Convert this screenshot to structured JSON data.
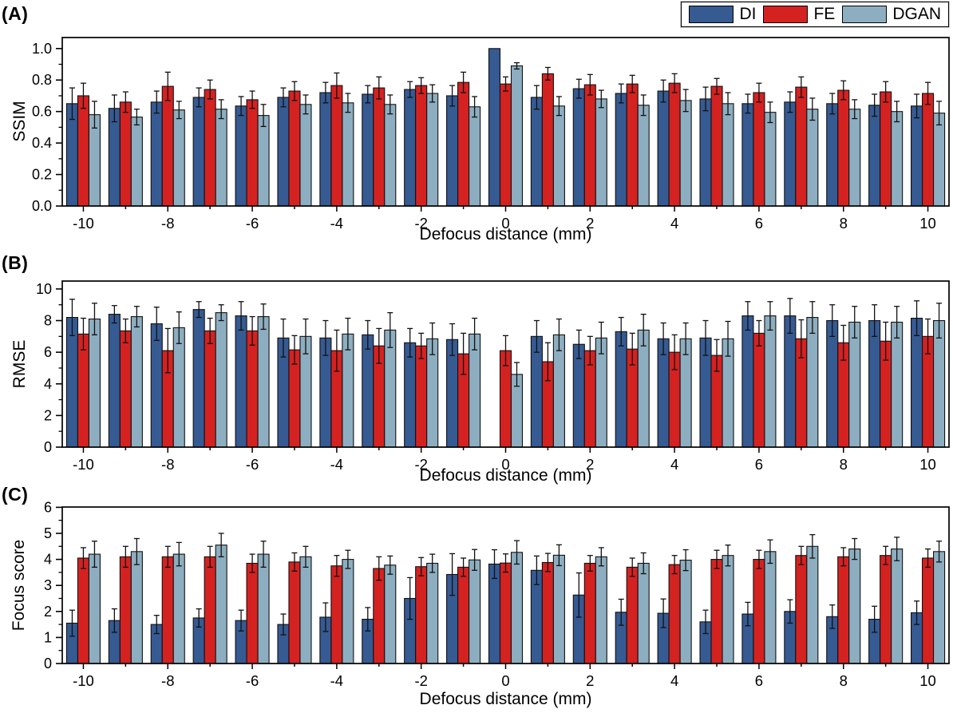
{
  "figure": {
    "panel_letters": [
      "(A)",
      "(B)",
      "(C)"
    ]
  },
  "legend": {
    "position": "top-right",
    "items": [
      {
        "label": "DI",
        "color": "#365A92"
      },
      {
        "label": "FE",
        "color": "#D42221"
      },
      {
        "label": "DGAN",
        "color": "#8DAEC0"
      }
    ]
  },
  "chart_data": [
    {
      "type": "bar",
      "panel_label": "(A)",
      "ylabel": "SSIM",
      "xlabel": "Defocus distance (mm)",
      "ylim": [
        0,
        1.0
      ],
      "ytick_step": 0.2,
      "ytick_decimals": 1,
      "grid": false,
      "legend_position": "top-right",
      "categories": [
        -10,
        -9,
        -8,
        -7,
        -6,
        -5,
        -4,
        -3,
        -2,
        -1,
        0,
        1,
        2,
        3,
        4,
        5,
        6,
        7,
        8,
        9,
        10
      ],
      "xtick_labels": [
        -10,
        -8,
        -6,
        -4,
        -2,
        0,
        2,
        4,
        6,
        8,
        10
      ],
      "series": [
        {
          "name": "DI",
          "color": "#365A92",
          "values": [
            0.65,
            0.62,
            0.66,
            0.69,
            0.635,
            0.69,
            0.72,
            0.71,
            0.74,
            0.7,
            1.0,
            0.69,
            0.745,
            0.715,
            0.73,
            0.68,
            0.65,
            0.66,
            0.65,
            0.64,
            0.635
          ],
          "errors": [
            0.1,
            0.085,
            0.07,
            0.06,
            0.06,
            0.06,
            0.065,
            0.055,
            0.05,
            0.065,
            0,
            0.075,
            0.06,
            0.06,
            0.07,
            0.075,
            0.06,
            0.065,
            0.065,
            0.07,
            0.075
          ]
        },
        {
          "name": "FE",
          "color": "#D42221",
          "values": [
            0.7,
            0.66,
            0.76,
            0.74,
            0.675,
            0.73,
            0.765,
            0.75,
            0.765,
            0.785,
            0.775,
            0.84,
            0.77,
            0.775,
            0.78,
            0.76,
            0.72,
            0.755,
            0.735,
            0.725,
            0.715
          ],
          "errors": [
            0.08,
            0.065,
            0.09,
            0.06,
            0.055,
            0.06,
            0.08,
            0.07,
            0.05,
            0.065,
            0.045,
            0.04,
            0.065,
            0.055,
            0.06,
            0.05,
            0.06,
            0.065,
            0.06,
            0.065,
            0.07
          ]
        },
        {
          "name": "DGAN",
          "color": "#8DAEC0",
          "values": [
            0.58,
            0.565,
            0.61,
            0.615,
            0.575,
            0.645,
            0.655,
            0.645,
            0.715,
            0.63,
            0.89,
            0.635,
            0.68,
            0.64,
            0.67,
            0.65,
            0.595,
            0.615,
            0.615,
            0.6,
            0.59
          ],
          "errors": [
            0.085,
            0.05,
            0.055,
            0.06,
            0.07,
            0.06,
            0.06,
            0.06,
            0.055,
            0.065,
            0.02,
            0.06,
            0.055,
            0.065,
            0.07,
            0.07,
            0.065,
            0.07,
            0.06,
            0.065,
            0.075
          ]
        }
      ]
    },
    {
      "type": "bar",
      "panel_label": "(B)",
      "ylabel": "RMSE",
      "xlabel": "Defocus distance (mm)",
      "ylim": [
        0,
        10
      ],
      "ytick_step": 2,
      "ytick_decimals": 0,
      "grid": false,
      "categories": [
        -10,
        -9,
        -8,
        -7,
        -6,
        -5,
        -4,
        -3,
        -2,
        -1,
        0,
        1,
        2,
        3,
        4,
        5,
        6,
        7,
        8,
        9,
        10
      ],
      "xtick_labels": [
        -10,
        -8,
        -6,
        -4,
        -2,
        0,
        2,
        4,
        6,
        8,
        10
      ],
      "series": [
        {
          "name": "DI",
          "color": "#365A92",
          "values": [
            8.2,
            8.4,
            7.8,
            8.7,
            8.3,
            6.9,
            6.9,
            7.1,
            6.6,
            6.8,
            0,
            7.0,
            6.5,
            7.3,
            6.85,
            6.9,
            8.3,
            8.3,
            8.0,
            8.0,
            8.15
          ],
          "errors": [
            1.15,
            0.55,
            1.05,
            0.5,
            0.9,
            1.2,
            1.1,
            0.9,
            0.9,
            1.0,
            0,
            1.0,
            0.9,
            0.9,
            1.0,
            1.1,
            0.9,
            1.1,
            1.0,
            1.0,
            1.1
          ]
        },
        {
          "name": "FE",
          "color": "#D42221",
          "values": [
            7.15,
            7.35,
            6.1,
            7.35,
            7.35,
            6.15,
            6.1,
            6.4,
            6.4,
            5.9,
            6.1,
            5.4,
            6.1,
            6.2,
            6.0,
            5.8,
            7.2,
            6.85,
            6.6,
            6.7,
            7.0
          ],
          "errors": [
            1.0,
            0.75,
            1.4,
            0.8,
            0.9,
            0.9,
            1.3,
            1.1,
            0.8,
            1.3,
            0.95,
            1.2,
            0.9,
            1.0,
            1.1,
            1.0,
            0.8,
            1.2,
            1.1,
            1.2,
            1.1
          ]
        },
        {
          "name": "DGAN",
          "color": "#8DAEC0",
          "values": [
            8.1,
            8.25,
            7.55,
            8.5,
            8.25,
            7.0,
            7.15,
            7.4,
            6.85,
            7.15,
            4.6,
            7.1,
            6.9,
            7.4,
            6.85,
            6.85,
            8.3,
            8.2,
            7.9,
            7.9,
            8.0
          ],
          "errors": [
            1.0,
            0.65,
            1.0,
            0.5,
            0.8,
            1.1,
            1.0,
            1.1,
            1.0,
            1.0,
            0.75,
            1.0,
            1.0,
            1.0,
            1.0,
            1.1,
            0.9,
            1.0,
            1.0,
            1.0,
            1.1
          ]
        }
      ]
    },
    {
      "type": "bar",
      "panel_label": "(C)",
      "ylabel": "Focus score",
      "xlabel": "Defocus distance (mm)",
      "ylim": [
        0,
        6
      ],
      "ytick_step": 1,
      "ytick_decimals": 0,
      "grid": false,
      "categories": [
        -10,
        -9,
        -8,
        -7,
        -6,
        -5,
        -4,
        -3,
        -2,
        -1,
        0,
        1,
        2,
        3,
        4,
        5,
        6,
        7,
        8,
        9,
        10
      ],
      "xtick_labels": [
        -10,
        -8,
        -6,
        -4,
        -2,
        0,
        2,
        4,
        6,
        8,
        10
      ],
      "series": [
        {
          "name": "DI",
          "color": "#365A92",
          "values": [
            1.55,
            1.65,
            1.5,
            1.75,
            1.65,
            1.5,
            1.78,
            1.7,
            2.5,
            3.42,
            3.82,
            3.58,
            2.63,
            1.97,
            1.93,
            1.6,
            1.9,
            2.0,
            1.8,
            1.7,
            1.95
          ],
          "errors": [
            0.5,
            0.45,
            0.35,
            0.35,
            0.4,
            0.4,
            0.55,
            0.45,
            0.8,
            0.8,
            0.55,
            0.55,
            0.85,
            0.5,
            0.55,
            0.45,
            0.45,
            0.45,
            0.45,
            0.5,
            0.45
          ]
        },
        {
          "name": "FE",
          "color": "#D42221",
          "values": [
            4.05,
            4.1,
            4.1,
            4.1,
            3.85,
            3.9,
            3.75,
            3.65,
            3.72,
            3.7,
            3.86,
            3.88,
            3.85,
            3.7,
            3.8,
            4.0,
            4.0,
            4.15,
            4.1,
            4.15,
            4.05
          ],
          "errors": [
            0.4,
            0.4,
            0.4,
            0.4,
            0.35,
            0.35,
            0.4,
            0.45,
            0.35,
            0.35,
            0.35,
            0.35,
            0.3,
            0.35,
            0.35,
            0.35,
            0.35,
            0.35,
            0.35,
            0.35,
            0.35
          ]
        },
        {
          "name": "DGAN",
          "color": "#8DAEC0",
          "values": [
            4.2,
            4.3,
            4.2,
            4.55,
            4.2,
            4.1,
            4.0,
            3.78,
            3.85,
            3.98,
            4.27,
            4.16,
            4.1,
            3.85,
            3.97,
            4.15,
            4.3,
            4.5,
            4.4,
            4.4,
            4.3
          ],
          "errors": [
            0.5,
            0.5,
            0.45,
            0.45,
            0.5,
            0.4,
            0.35,
            0.35,
            0.35,
            0.4,
            0.45,
            0.4,
            0.35,
            0.4,
            0.4,
            0.4,
            0.45,
            0.45,
            0.4,
            0.45,
            0.4
          ]
        }
      ]
    }
  ]
}
